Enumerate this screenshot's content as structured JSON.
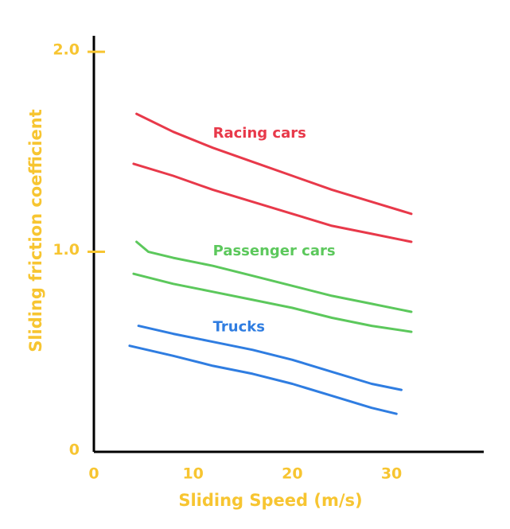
{
  "chart_data": {
    "type": "line",
    "x_label": "Sliding Speed (m/s)",
    "y_label": "Sliding friction coefficient",
    "xlim": [
      0,
      39.3
    ],
    "ylim": [
      0,
      2.08
    ],
    "xticks": [
      0,
      10,
      20,
      30
    ],
    "yticks": [
      0,
      {
        "value": 1.0,
        "label": "1.0"
      },
      {
        "value": 2.0,
        "label": "2.0"
      }
    ],
    "axis_color": "#f7c531",
    "series": [
      {
        "name": "Racing cars",
        "color": "#e8394a",
        "lines": [
          {
            "x": [
              4.3,
              8,
              12,
              16,
              20,
              24,
              28,
              32
            ],
            "values": [
              1.69,
              1.6,
              1.52,
              1.45,
              1.38,
              1.31,
              1.25,
              1.19
            ]
          },
          {
            "x": [
              4,
              8,
              12,
              16,
              20,
              24,
              28,
              32
            ],
            "values": [
              1.44,
              1.38,
              1.31,
              1.25,
              1.19,
              1.13,
              1.09,
              1.05
            ]
          }
        ]
      },
      {
        "name": "Passenger cars",
        "color": "#5cc85c",
        "lines": [
          {
            "x": [
              4.3,
              5.5,
              8,
              12,
              16,
              20,
              24,
              28,
              32
            ],
            "values": [
              1.05,
              1.0,
              0.97,
              0.93,
              0.88,
              0.83,
              0.78,
              0.74,
              0.7
            ]
          },
          {
            "x": [
              4,
              8,
              12,
              16,
              20,
              24,
              28,
              32
            ],
            "values": [
              0.89,
              0.84,
              0.8,
              0.76,
              0.72,
              0.67,
              0.63,
              0.6
            ]
          }
        ]
      },
      {
        "name": "Trucks",
        "color": "#2f7de1",
        "lines": [
          {
            "x": [
              4.5,
              8,
              12,
              16,
              20,
              24,
              28,
              31
            ],
            "values": [
              0.63,
              0.59,
              0.55,
              0.51,
              0.46,
              0.4,
              0.34,
              0.31
            ]
          },
          {
            "x": [
              3.6,
              8,
              12,
              16,
              20,
              24,
              28,
              30.5
            ],
            "values": [
              0.53,
              0.48,
              0.43,
              0.39,
              0.34,
              0.28,
              0.22,
              0.19
            ]
          }
        ]
      }
    ]
  }
}
